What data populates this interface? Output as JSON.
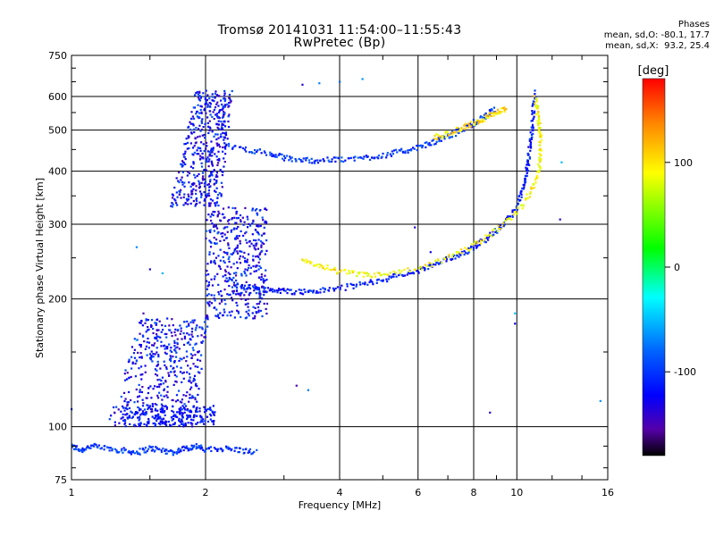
{
  "header": {
    "title_line1": "Tromsø 20141031 11:54:00–11:55:43",
    "title_line2": "RwPretec (Bp)",
    "phases_title": "Phases",
    "phases_o": "mean, sd,O: -80.1, 17.7",
    "phases_x": "mean, sd,X:  93.2, 25.4"
  },
  "chart_data": {
    "type": "scatter",
    "xlabel": "Frequency [MHz]",
    "ylabel": "Stationary phase Virtual Height [km]",
    "x_scale": "log",
    "y_scale": "log",
    "xlim": [
      1,
      16
    ],
    "ylim": [
      75,
      750
    ],
    "x_ticks": [
      1,
      2,
      4,
      6,
      8,
      10,
      16
    ],
    "y_ticks": [
      75,
      100,
      200,
      300,
      400,
      500,
      600,
      750
    ],
    "grid": true,
    "colorbar": {
      "label": "[deg]",
      "range": [
        -180,
        180
      ],
      "ticks": [
        100,
        0,
        -100
      ],
      "colors": [
        "#ff0000",
        "#ff8800",
        "#ffff00",
        "#00ff00",
        "#00ffff",
        "#0066ff",
        "#0000ff",
        "#5500aa",
        "#000000"
      ]
    },
    "series": [
      {
        "description_key": "o_trace_E_layer",
        "points": [
          [
            1.0,
            90
          ],
          [
            1.05,
            88
          ],
          [
            1.1,
            90
          ],
          [
            1.2,
            89
          ],
          [
            1.3,
            88
          ],
          [
            1.4,
            87
          ],
          [
            1.5,
            89
          ],
          [
            1.6,
            88
          ],
          [
            1.7,
            87
          ],
          [
            1.8,
            89
          ],
          [
            1.9,
            90
          ],
          [
            2.0,
            88
          ],
          [
            2.2,
            89
          ],
          [
            2.4,
            88
          ],
          [
            2.6,
            87
          ]
        ],
        "phase": -90
      },
      {
        "description_key": "o_trace_lower_F",
        "points": [
          [
            2.2,
            225
          ],
          [
            2.4,
            215
          ],
          [
            2.6,
            212
          ],
          [
            2.8,
            210
          ],
          [
            3.0,
            209
          ],
          [
            3.3,
            208
          ],
          [
            3.6,
            209
          ],
          [
            4.0,
            212
          ],
          [
            4.5,
            217
          ],
          [
            5.0,
            222
          ],
          [
            5.5,
            228
          ],
          [
            6.0,
            233
          ],
          [
            6.5,
            240
          ],
          [
            7.0,
            248
          ],
          [
            7.5,
            256
          ],
          [
            8.0,
            265
          ],
          [
            8.5,
            277
          ],
          [
            9.0,
            290
          ],
          [
            9.5,
            305
          ],
          [
            10.0,
            330
          ],
          [
            10.3,
            360
          ],
          [
            10.5,
            390
          ],
          [
            10.6,
            420
          ],
          [
            10.7,
            460
          ],
          [
            10.8,
            500
          ],
          [
            10.9,
            560
          ],
          [
            11.0,
            620
          ]
        ],
        "phase": -100
      },
      {
        "description_key": "o_trace_upper_F",
        "points": [
          [
            2.2,
            460
          ],
          [
            2.5,
            450
          ],
          [
            2.8,
            440
          ],
          [
            3.0,
            430
          ],
          [
            3.3,
            425
          ],
          [
            3.6,
            424
          ],
          [
            4.0,
            426
          ],
          [
            4.5,
            430
          ],
          [
            5.0,
            436
          ],
          [
            5.5,
            445
          ],
          [
            6.0,
            455
          ],
          [
            6.5,
            468
          ],
          [
            7.0,
            484
          ],
          [
            7.5,
            500
          ],
          [
            8.0,
            520
          ],
          [
            8.5,
            540
          ],
          [
            9.0,
            560
          ]
        ],
        "phase": -90
      },
      {
        "description_key": "x_trace_F",
        "points": [
          [
            3.3,
            245
          ],
          [
            3.6,
            240
          ],
          [
            4.0,
            232
          ],
          [
            4.5,
            228
          ],
          [
            5.0,
            228
          ],
          [
            6.0,
            235
          ],
          [
            7.0,
            250
          ],
          [
            8.0,
            268
          ],
          [
            9.0,
            290
          ],
          [
            10.0,
            320
          ],
          [
            10.8,
            360
          ],
          [
            11.2,
            400
          ],
          [
            11.3,
            440
          ],
          [
            11.3,
            480
          ],
          [
            11.2,
            520
          ],
          [
            11.1,
            560
          ],
          [
            11.0,
            600
          ]
        ],
        "phase": 100
      },
      {
        "description_key": "x_trace_upper",
        "points": [
          [
            6.5,
            480
          ],
          [
            7.0,
            490
          ],
          [
            7.5,
            505
          ],
          [
            8.0,
            518
          ],
          [
            8.5,
            535
          ],
          [
            9.0,
            548
          ],
          [
            9.5,
            565
          ]
        ],
        "phase": 110
      }
    ],
    "spread_F": {
      "x_range": [
        1.3,
        2.7
      ],
      "y_range": [
        100,
        620
      ],
      "phase": -110
    }
  }
}
